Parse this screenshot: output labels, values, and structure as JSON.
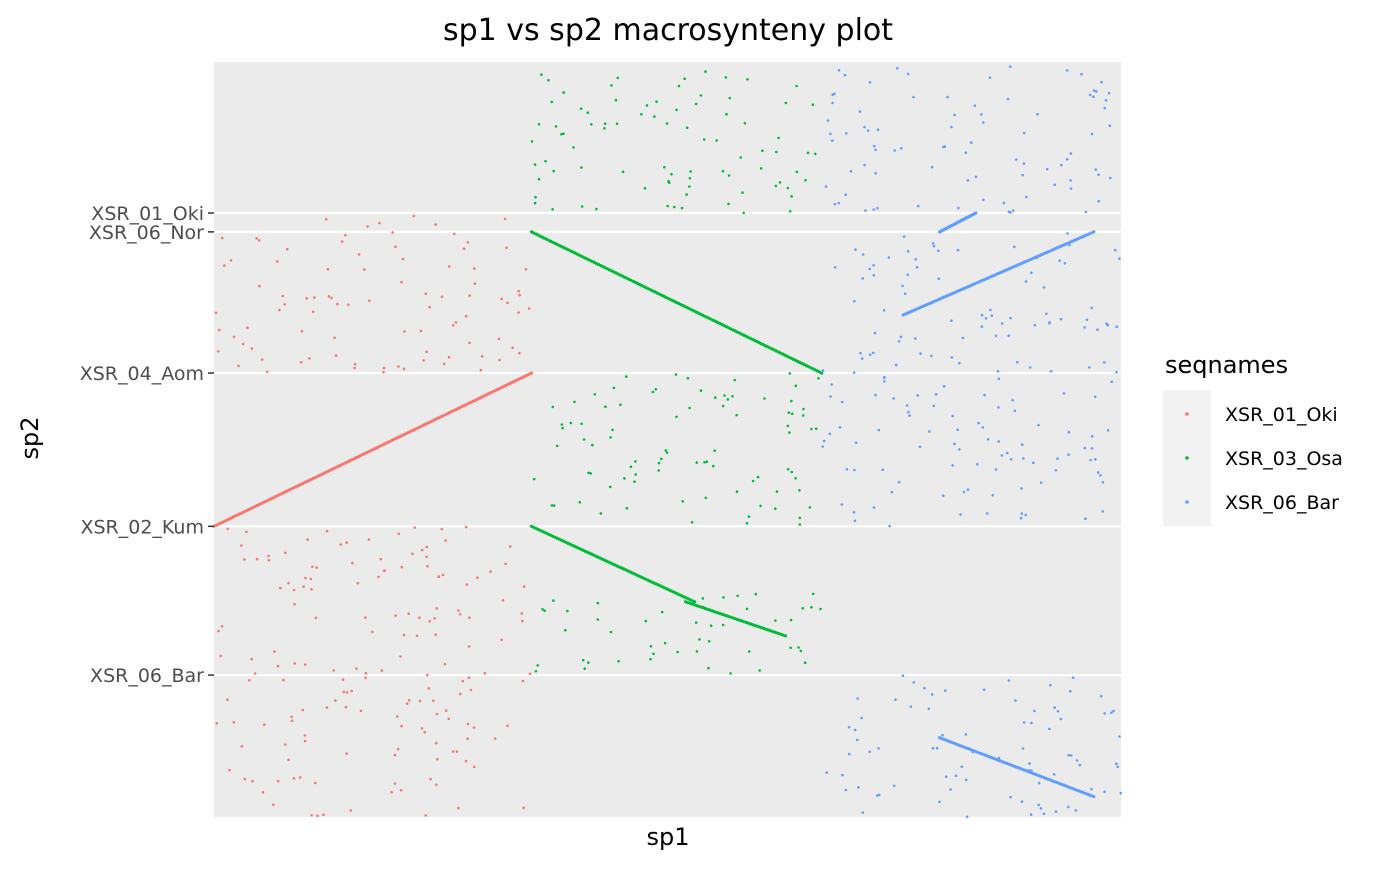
{
  "chart_data": {
    "type": "scatter",
    "title": "sp1 vs sp2 macrosynteny plot",
    "xlabel": "sp1",
    "ylabel": "sp2",
    "x_tick_labels": [],
    "y_ticks": [
      {
        "label": "XSR_01_Oki",
        "value": 0.8
      },
      {
        "label": "XSR_06_Nor",
        "value": 0.775
      },
      {
        "label": "XSR_04_Aom",
        "value": 0.588
      },
      {
        "label": "XSR_02_Kum",
        "value": 0.385
      },
      {
        "label": "XSR_06_Bar",
        "value": 0.188
      }
    ],
    "xlim": [
      0,
      1
    ],
    "ylim": [
      0,
      1
    ],
    "grid": true,
    "panel_background": "#EBEBEB",
    "legend": {
      "title": "seqnames",
      "placement": "right",
      "entries": [
        {
          "label": "XSR_01_Oki",
          "color": "#F8766D"
        },
        {
          "label": "XSR_03_Osa",
          "color": "#00BA38"
        },
        {
          "label": "XSR_06_Bar",
          "color": "#619CFF"
        }
      ]
    },
    "series": [
      {
        "name": "XSR_01_Oki",
        "color": "#F8766D",
        "x_range": [
          0,
          0.35
        ],
        "syntenic_blocks": [
          {
            "x": [
              0.0,
              0.35
            ],
            "y": [
              0.385,
              0.588
            ]
          }
        ],
        "scatter_bands": [
          [
            0.0,
            0.385
          ],
          [
            0.588,
            0.8
          ]
        ]
      },
      {
        "name": "XSR_03_Osa",
        "color": "#00BA38",
        "x_range": [
          0.35,
          0.67
        ],
        "syntenic_blocks": [
          {
            "x": [
              0.35,
              0.67
            ],
            "y": [
              0.775,
              0.588
            ]
          },
          {
            "x": [
              0.35,
              0.53
            ],
            "y": [
              0.385,
              0.285
            ]
          },
          {
            "x": [
              0.52,
              0.63
            ],
            "y": [
              0.285,
              0.24
            ]
          }
        ],
        "scatter_bands": [
          [
            0.385,
            0.588
          ],
          [
            0.8,
            1.0
          ],
          [
            0.188,
            0.3
          ]
        ]
      },
      {
        "name": "XSR_06_Bar",
        "color": "#619CFF",
        "x_range": [
          0.67,
          1.0
        ],
        "syntenic_blocks": [
          {
            "x": [
              0.76,
              0.97
            ],
            "y": [
              0.665,
              0.775
            ]
          },
          {
            "x": [
              0.8,
              0.97
            ],
            "y": [
              0.105,
              0.027
            ]
          },
          {
            "x": [
              0.8,
              0.84
            ],
            "y": [
              0.775,
              0.8
            ]
          }
        ],
        "scatter_bands": [
          [
            0.385,
            0.588
          ],
          [
            0.8,
            1.0
          ],
          [
            0.0,
            0.188
          ],
          [
            0.588,
            0.775
          ]
        ]
      }
    ]
  }
}
